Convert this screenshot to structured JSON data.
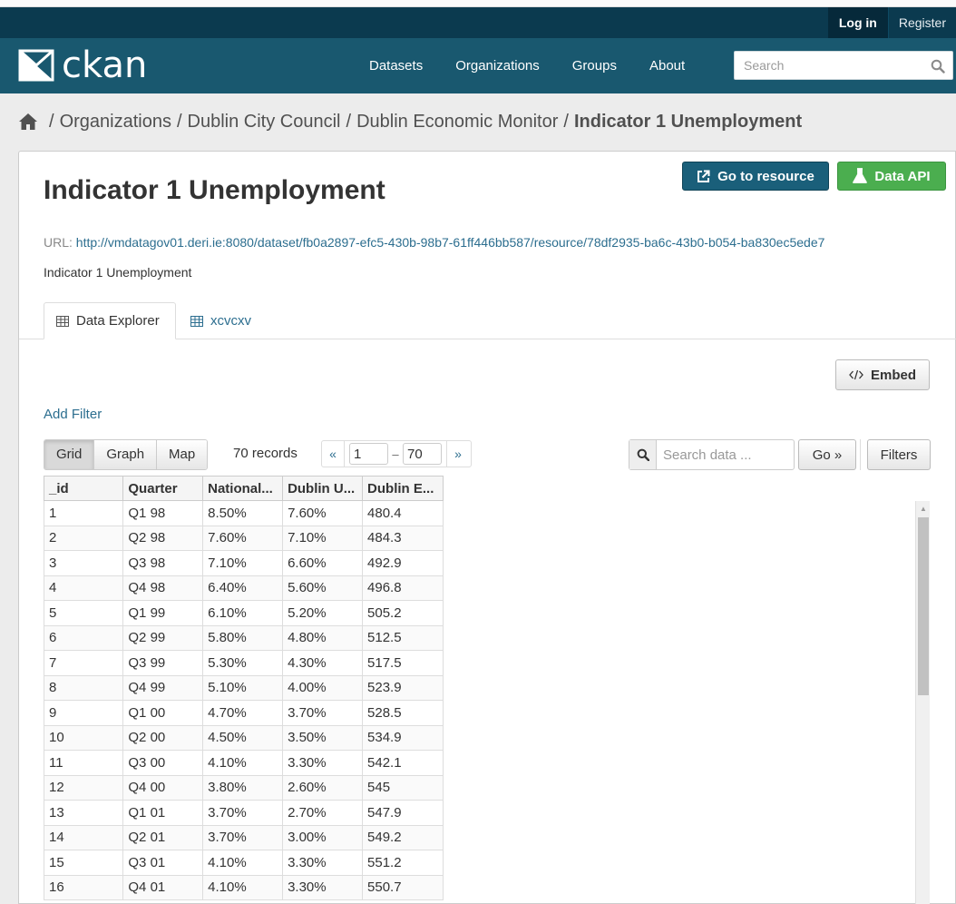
{
  "account": {
    "login": "Log in",
    "register": "Register"
  },
  "brand": {
    "name": "ckan"
  },
  "nav": {
    "datasets": "Datasets",
    "organizations": "Organizations",
    "groups": "Groups",
    "about": "About"
  },
  "search": {
    "placeholder": "Search"
  },
  "breadcrumb": {
    "sep": "/",
    "organizations": "Organizations",
    "org": "Dublin City Council",
    "dataset": "Dublin Economic Monitor",
    "current": "Indicator 1 Unemployment"
  },
  "resource": {
    "title": "Indicator 1 Unemployment",
    "go_to_resource": "Go to resource",
    "data_api": "Data API",
    "url_label": "URL:",
    "url": "http://vmdatagov01.deri.ie:8080/dataset/fb0a2897-efc5-430b-98b7-61ff446bb587/resource/78df2935-ba6c-43b0-b054-ba830ec5ede7",
    "description": "Indicator 1 Unemployment"
  },
  "tabs": {
    "explorer": "Data Explorer",
    "other": "xcvcxv"
  },
  "explorer": {
    "embed": "Embed",
    "add_filter": "Add Filter",
    "views": {
      "grid": "Grid",
      "graph": "Graph",
      "map": "Map"
    },
    "records": "70 records",
    "pager": {
      "prev": "«",
      "from": "1",
      "dash": "–",
      "to": "70",
      "next": "»"
    },
    "search_placeholder": "Search data ...",
    "go": "Go »",
    "filters": "Filters"
  },
  "table": {
    "columns": [
      "_id",
      "Quarter",
      "National...",
      "Dublin U...",
      "Dublin E..."
    ],
    "rows": [
      [
        "1",
        "Q1 98",
        "8.50%",
        "7.60%",
        "480.4"
      ],
      [
        "2",
        "Q2 98",
        "7.60%",
        "7.10%",
        "484.3"
      ],
      [
        "3",
        "Q3 98",
        "7.10%",
        "6.60%",
        "492.9"
      ],
      [
        "4",
        "Q4 98",
        "6.40%",
        "5.60%",
        "496.8"
      ],
      [
        "5",
        "Q1 99",
        "6.10%",
        "5.20%",
        "505.2"
      ],
      [
        "6",
        "Q2 99",
        "5.80%",
        "4.80%",
        "512.5"
      ],
      [
        "7",
        "Q3 99",
        "5.30%",
        "4.30%",
        "517.5"
      ],
      [
        "8",
        "Q4 99",
        "5.10%",
        "4.00%",
        "523.9"
      ],
      [
        "9",
        "Q1 00",
        "4.70%",
        "3.70%",
        "528.5"
      ],
      [
        "10",
        "Q2 00",
        "4.50%",
        "3.50%",
        "534.9"
      ],
      [
        "11",
        "Q3 00",
        "4.10%",
        "3.30%",
        "542.1"
      ],
      [
        "12",
        "Q4 00",
        "3.80%",
        "2.60%",
        "545"
      ],
      [
        "13",
        "Q1 01",
        "3.70%",
        "2.70%",
        "547.9"
      ],
      [
        "14",
        "Q2 01",
        "3.70%",
        "3.00%",
        "549.2"
      ],
      [
        "15",
        "Q3 01",
        "4.10%",
        "3.30%",
        "551.2"
      ],
      [
        "16",
        "Q4 01",
        "4.10%",
        "3.30%",
        "550.7"
      ]
    ]
  },
  "colors": {
    "account_bar": "#0b3a4f",
    "masthead": "#19586f",
    "primary_button": "#1a5f7a",
    "success_button": "#4bae4f",
    "link": "#2c6e8f"
  },
  "icons": {
    "home": "home-icon",
    "search": "search-icon",
    "external": "external-link-icon",
    "flask": "flask-icon",
    "code": "code-icon",
    "table": "table-icon"
  }
}
